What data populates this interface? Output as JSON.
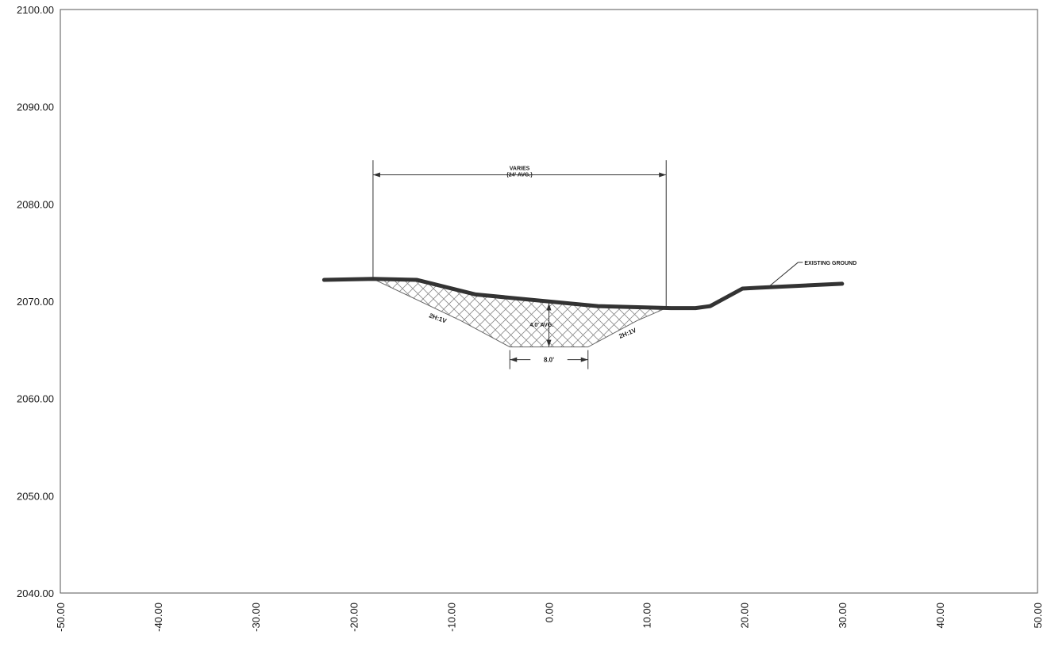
{
  "chart_data": {
    "type": "line",
    "title": "",
    "xlabel": "",
    "ylabel": "",
    "xlim": [
      -50,
      50
    ],
    "ylim": [
      2040,
      2100
    ],
    "x_tick_labels": [
      "-50.00",
      "-40.00",
      "-30.00",
      "-20.00",
      "-10.00",
      "0.00",
      "10.00",
      "20.00",
      "30.00",
      "40.00",
      "50.00"
    ],
    "y_tick_labels": [
      "2100.00",
      "2090.00",
      "2080.00",
      "2070.00",
      "2060.00",
      "2050.00",
      "2040.00"
    ],
    "grid": false,
    "series": [
      {
        "name": "EXISTING GROUND",
        "x": [
          -23,
          -18,
          -13.5,
          -7.5,
          5,
          12.5,
          15,
          16.5,
          19.8,
          21.5,
          30
        ],
        "y": [
          2072.2,
          2072.3,
          2072.2,
          2070.7,
          2069.5,
          2069.3,
          2069.3,
          2069.5,
          2071.3,
          2071.4,
          2071.8
        ]
      },
      {
        "name": "",
        "x": [
          -18,
          -9,
          -4,
          4,
          9,
          12
        ],
        "y": [
          2072.3,
          2068.0,
          2065.3,
          2065.3,
          2068.0,
          2069.3
        ]
      }
    ],
    "annotations": {
      "existing_ground": "EXISTING GROUND",
      "width_line1": "VARIES",
      "width_line2": "(24' AVG.)",
      "depth": "4.0' AVG.",
      "bottom_width": "8.0'",
      "slope_left": "2H:1V",
      "slope_right": "2H:1V"
    },
    "width_dim_x": [
      -18,
      12
    ],
    "width_dim_y": 2083,
    "ext_line_top_y": 2084.5,
    "bottom_dim_x": [
      -4,
      4
    ],
    "bottom_dim_y": 2064.0,
    "depth_x": 0,
    "depth_y": [
      2069.8,
      2065.3
    ],
    "leader_x": [
      22.5,
      25.5
    ],
    "leader_y": [
      2071.5,
      2074.0
    ]
  }
}
